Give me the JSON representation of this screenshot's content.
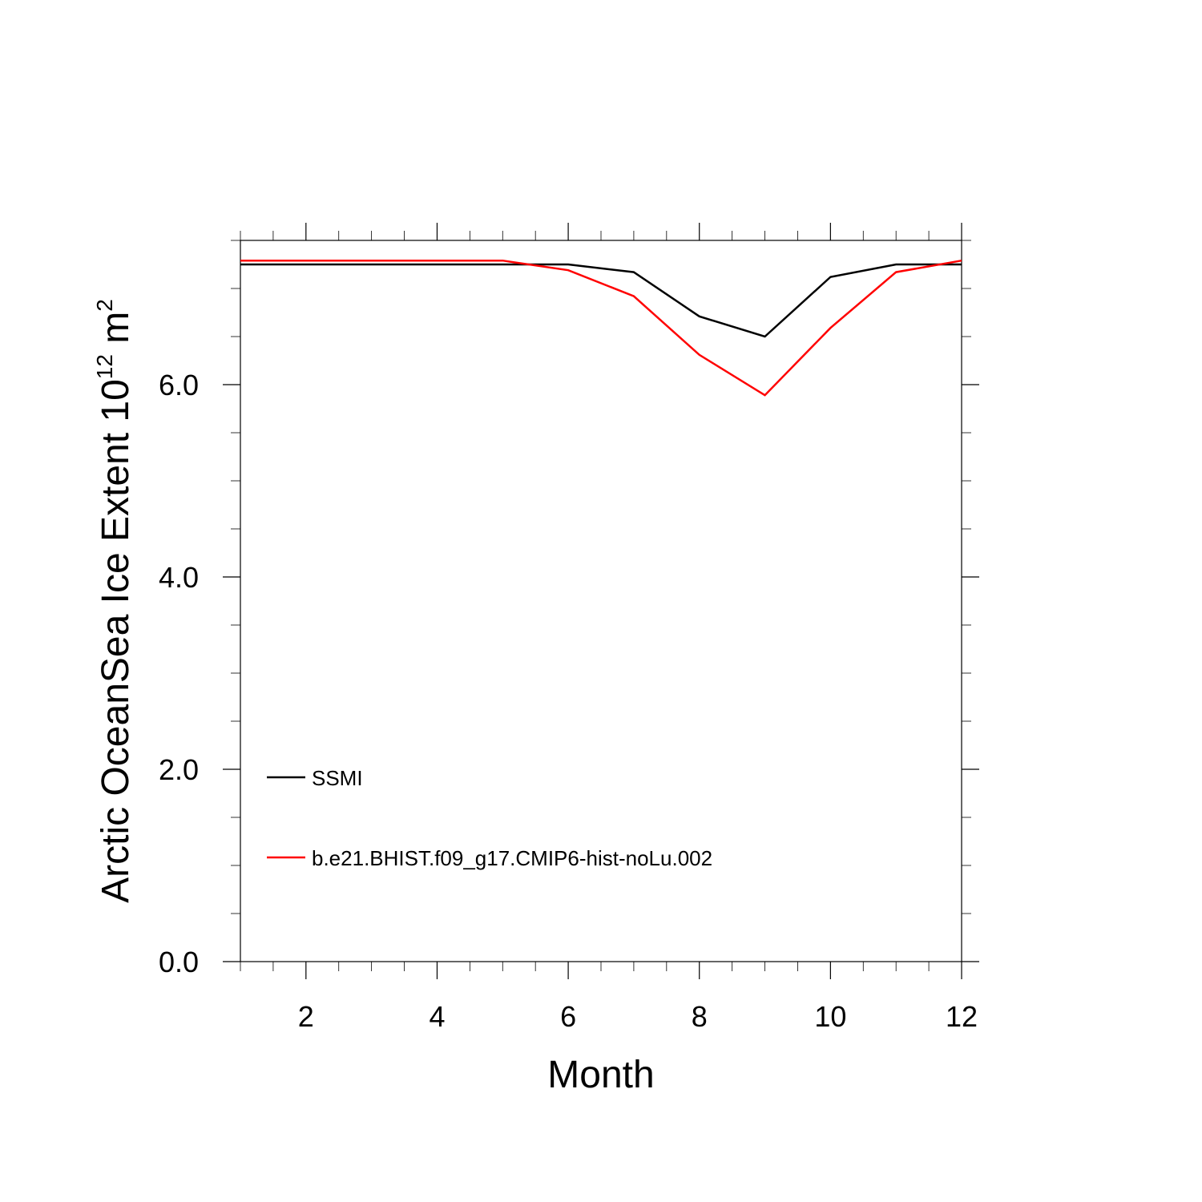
{
  "chart_data": {
    "type": "line",
    "title": "",
    "xlabel": "Month",
    "ylabel": {
      "base": "Arctic OceanSea Ice Extent 10",
      "exp1": "12",
      "unit": " m",
      "exp2": "2"
    },
    "xlim": [
      1,
      12
    ],
    "ylim": [
      0,
      7.5
    ],
    "x_ticks": [
      2,
      4,
      6,
      8,
      10,
      12
    ],
    "x_tick_labels": [
      "2",
      "4",
      "6",
      "8",
      "10",
      "12"
    ],
    "x_minor_step": 0.5,
    "y_ticks": [
      0,
      2,
      4,
      6
    ],
    "y_tick_labels": [
      "0.0",
      "2.0",
      "4.0",
      "6.0"
    ],
    "y_minor_step": 0.5,
    "grid": false,
    "legend_position": "bottom-left",
    "x": [
      1,
      2,
      3,
      4,
      5,
      6,
      7,
      8,
      9,
      10,
      11,
      12
    ],
    "series": [
      {
        "name": "SSMI",
        "color": "#000000",
        "values": [
          7.25,
          7.25,
          7.25,
          7.25,
          7.25,
          7.25,
          7.17,
          6.71,
          6.5,
          7.12,
          7.25,
          7.25
        ]
      },
      {
        "name": "b.e21.BHIST.f09_g17.CMIP6-hist-noLu.002",
        "color": "#ff0000",
        "values": [
          7.29,
          7.29,
          7.29,
          7.29,
          7.29,
          7.19,
          6.92,
          6.31,
          5.89,
          6.59,
          7.17,
          7.29
        ]
      }
    ]
  }
}
